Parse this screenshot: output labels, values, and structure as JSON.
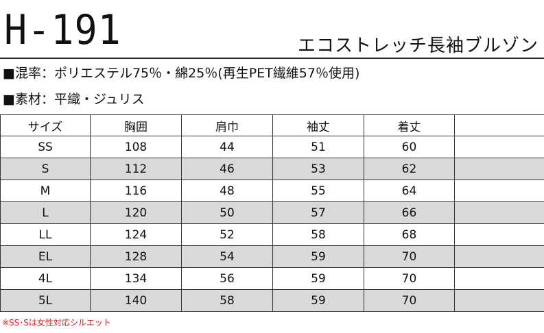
{
  "header": {
    "code": "H-191",
    "product_name": "エコストレッチ長袖ブルゾン"
  },
  "specs": {
    "blend": "■混率：ポリエステル75％・綿25％(再生PET繊維57％使用)",
    "material": "■素材：平織・ジュリス"
  },
  "table": {
    "headers": [
      "サイズ",
      "胸囲",
      "肩巾",
      "袖丈",
      "着丈",
      ""
    ],
    "rows": [
      {
        "size": "SS",
        "chest": "108",
        "shoulder": "44",
        "sleeve": "51",
        "length": "60",
        "extra": ""
      },
      {
        "size": "S",
        "chest": "112",
        "shoulder": "46",
        "sleeve": "53",
        "length": "62",
        "extra": ""
      },
      {
        "size": "M",
        "chest": "116",
        "shoulder": "48",
        "sleeve": "55",
        "length": "64",
        "extra": ""
      },
      {
        "size": "L",
        "chest": "120",
        "shoulder": "50",
        "sleeve": "57",
        "length": "66",
        "extra": ""
      },
      {
        "size": "LL",
        "chest": "124",
        "shoulder": "52",
        "sleeve": "58",
        "length": "68",
        "extra": ""
      },
      {
        "size": "EL",
        "chest": "128",
        "shoulder": "54",
        "sleeve": "59",
        "length": "70",
        "extra": ""
      },
      {
        "size": "4L",
        "chest": "134",
        "shoulder": "56",
        "sleeve": "59",
        "length": "70",
        "extra": ""
      },
      {
        "size": "5L",
        "chest": "140",
        "shoulder": "58",
        "sleeve": "59",
        "length": "70",
        "extra": ""
      }
    ],
    "shade_color": "#d9d9d9",
    "shaded_rows": [
      1,
      3,
      5,
      7
    ]
  },
  "note": {
    "text": "※SS･Sは女性対応シルエット",
    "color": "#d62020"
  }
}
